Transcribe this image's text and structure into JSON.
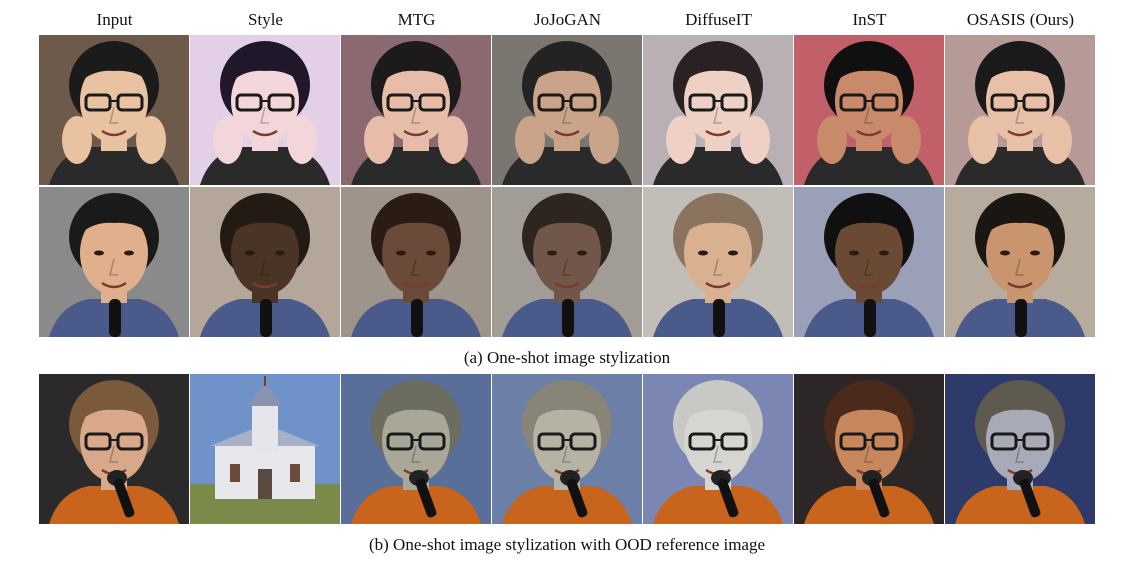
{
  "headers": [
    "Input",
    "Style",
    "MTG",
    "JoJoGAN",
    "DiffuseIT",
    "InST",
    "OSASIS  (Ours)"
  ],
  "caption_a": "(a) One-shot  image  stylization",
  "caption_b": "(b) One-shot  image  stylization  with  OOD reference  image",
  "rows": [
    {
      "id": "row-1",
      "palette": {
        "bg": [
          "#6e5a4a",
          "#e3cfe8",
          "#8a6a70",
          "#7a7670",
          "#b8b0b4",
          "#c2606a",
          "#b59a98"
        ],
        "skin": [
          "#e9c2a2",
          "#f2d6d9",
          "#e7bca8",
          "#c9a48a",
          "#efd0c4",
          "#c98a6c",
          "#e8c0a8"
        ],
        "hair": [
          "#1b1b1b",
          "#20182a",
          "#1d1a1c",
          "#232323",
          "#2a2222",
          "#101010",
          "#1a1a1a"
        ]
      }
    },
    {
      "id": "row-2",
      "palette": {
        "bg": [
          "#8a8a8a",
          "#b4a79a",
          "#9e948a",
          "#a29c96",
          "#c2bdb6",
          "#9aa0b8",
          "#b6ab9c"
        ],
        "skin": [
          "#e0b08c",
          "#4a3426",
          "#6a4a38",
          "#70574a",
          "#d9b090",
          "#6a4a34",
          "#c8956e"
        ],
        "hair": [
          "#1a1a1a",
          "#241a14",
          "#2a1c14",
          "#2e2520",
          "#8a7460",
          "#101010",
          "#1a1612"
        ]
      }
    },
    {
      "id": "row-3",
      "palette": {
        "bg": [
          "#2a2a2a",
          "#6f93c8",
          "#5a6e9a",
          "#6c7fa6",
          "#7c86b2",
          "#2c2626",
          "#2e3a6a"
        ],
        "skin": [
          "#d9a88a",
          "#eceff4",
          "#a9a898",
          "#b7b3a4",
          "#d7d5d0",
          "#c8865c",
          "#a8aab8"
        ],
        "hair": [
          "#7a5a3a",
          "#6a7a5a",
          "#6c6c60",
          "#888478",
          "#c8c8c4",
          "#4a2a1a",
          "#5e5a50"
        ]
      }
    }
  ]
}
